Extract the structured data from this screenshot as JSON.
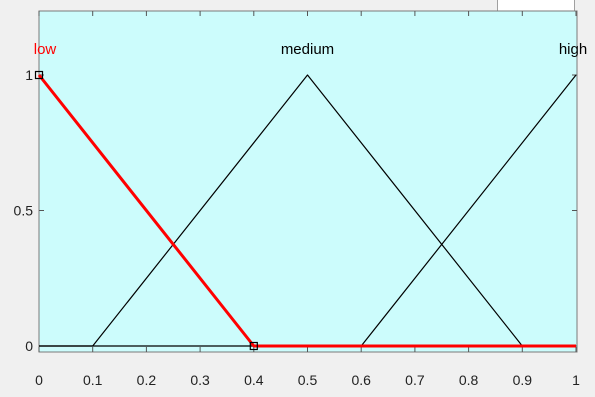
{
  "window": {
    "background": "#f0f0f0",
    "plot_background": "#ccfcfc"
  },
  "chart_data": {
    "type": "line",
    "title": "",
    "xlabel": "",
    "ylabel": "",
    "xlim": [
      0,
      1
    ],
    "ylim": [
      0,
      1
    ],
    "grid": false,
    "x_ticks": [
      "0",
      "0.1",
      "0.2",
      "0.3",
      "0.4",
      "0.5",
      "0.6",
      "0.7",
      "0.8",
      "0.9",
      "1"
    ],
    "x_tick_values": [
      0,
      0.1,
      0.2,
      0.3,
      0.4,
      0.5,
      0.6,
      0.7,
      0.8,
      0.9,
      1
    ],
    "y_ticks": [
      "0",
      "0.5",
      "1"
    ],
    "y_tick_values": [
      0,
      0.5,
      1
    ],
    "series": [
      {
        "name": "low",
        "color": "#ff0000",
        "selected": true,
        "points": [
          [
            0,
            1
          ],
          [
            0.4,
            0
          ],
          [
            1,
            0
          ]
        ],
        "handles": [
          [
            0,
            1
          ],
          [
            0.4,
            0
          ]
        ]
      },
      {
        "name": "medium",
        "color": "#000000",
        "selected": false,
        "points": [
          [
            0,
            0
          ],
          [
            0.1,
            0
          ],
          [
            0.5,
            1
          ],
          [
            0.9,
            0
          ],
          [
            1,
            0
          ]
        ],
        "handles": []
      },
      {
        "name": "high",
        "color": "#000000",
        "selected": false,
        "points": [
          [
            0,
            0
          ],
          [
            0.6,
            0
          ],
          [
            1,
            1
          ]
        ],
        "handles": []
      }
    ],
    "labels": [
      {
        "text": "low",
        "x": 0,
        "color": "#ff0000"
      },
      {
        "text": "medium",
        "x": 0.5,
        "color": "#000000"
      },
      {
        "text": "high",
        "x": 1,
        "color": "#000000"
      }
    ]
  }
}
